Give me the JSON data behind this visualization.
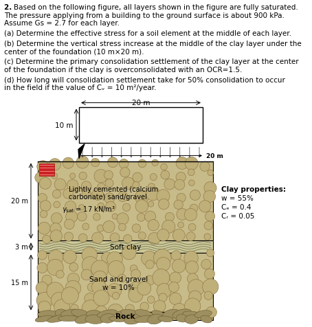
{
  "line1": "2. Based on the following figure, all layers shown in the figure are fully saturated.",
  "line2": "The pressure applying from a building to the ground surface is about 900 kPa.",
  "line3": "Assume Gs = 2.7 for each layer.",
  "part_a": "(a) Determine the effective stress for a soil element at the middle of each layer.",
  "part_b1": "(b) Determine the vertical stress increase at the middle of the clay layer under the",
  "part_b2": "center of the foundation (10 m×20 m).",
  "part_c1": "(c) Determine the primary consolidation settlement of the clay layer at the center",
  "part_c2": "of the foundation if the clay is overconsolidated with an OCR=1.5.",
  "part_d1": "(d) How long will consolidation settlement take for 50% consolidation to occur",
  "part_d2": "in the field if the value of Cᵥ = 10 m²/year.",
  "foundation_width_label": "20 m",
  "foundation_height_label": "10 m",
  "pressure_width_label": "20 m",
  "layer1_line1": "Lightly cemented (calcium",
  "layer1_line2": "carbonate) sand/gravel",
  "layer1_gamma": "γsat = 17 kN/m³",
  "layer1_height": "20 m",
  "layer2_label": "Soft clay",
  "layer2_height": "3 m",
  "layer3_label": "Sand and gravel",
  "layer3_w": "w = 10%",
  "layer3_height": "15 m",
  "rock_label": "Rock",
  "clay_props_title": "Clay properties:",
  "clay_w": "w = 55%",
  "clay_Cc": "Cₑ = 0.4",
  "clay_Cr": "Cᵣ = 0.05",
  "bg_color": "#ffffff"
}
